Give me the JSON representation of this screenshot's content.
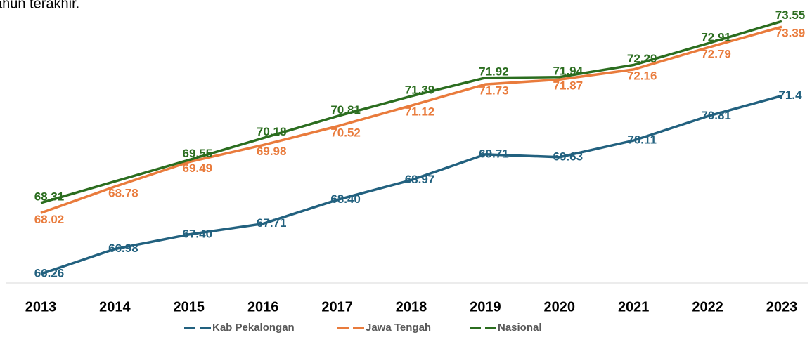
{
  "chart_data": {
    "type": "line",
    "note": "ahun terakhir.",
    "categories": [
      "2013",
      "2014",
      "2015",
      "2016",
      "2017",
      "2018",
      "2019",
      "2020",
      "2021",
      "2022",
      "2023"
    ],
    "series": [
      {
        "name": "Kab Pekalongan",
        "color": "#22617f",
        "values": [
          66.26,
          66.98,
          67.4,
          67.71,
          68.4,
          68.97,
          69.71,
          69.63,
          70.11,
          70.81,
          71.4
        ],
        "value_labels": [
          "66.26",
          "66.98",
          "67.40",
          "67.71",
          "68.40",
          "68.97",
          "69.71",
          "69.63",
          "70.11",
          "70.81",
          "71.4"
        ]
      },
      {
        "name": "Jawa Tengah",
        "color": "#e97b3c",
        "values": [
          68.02,
          68.78,
          69.49,
          69.98,
          70.52,
          71.12,
          71.73,
          71.87,
          72.16,
          72.79,
          73.39
        ],
        "value_labels": [
          "68.02",
          "68.78",
          "69.49",
          "69.98",
          "70.52",
          "71.12",
          "71.73",
          "71.87",
          "72.16",
          "72.79",
          "73.39"
        ]
      },
      {
        "name": "Nasional",
        "color": "#2b6d1f",
        "values": [
          68.31,
          68.93,
          69.55,
          70.18,
          70.81,
          71.39,
          71.92,
          71.94,
          72.29,
          72.91,
          73.55
        ],
        "value_labels": [
          "68.31",
          null,
          "69.55",
          "70.18",
          "70.81",
          "71.39",
          "71.92",
          "71.94",
          "72.29",
          "72.91",
          "73.55"
        ]
      }
    ],
    "ylim": [
      66,
      73.86
    ],
    "legend": "bottom"
  }
}
